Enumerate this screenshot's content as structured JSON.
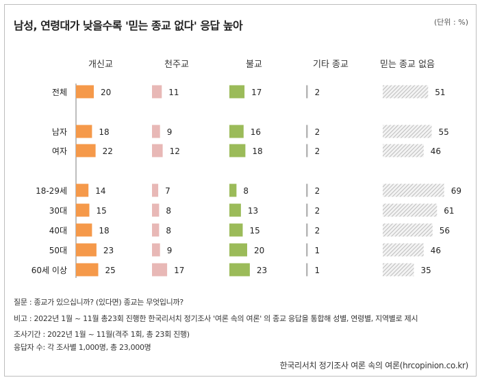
{
  "title": "남성, 연령대가 낮을수록 '믿는 종교 없다' 응답 높아",
  "unit": "(단위 : %)",
  "notes": {
    "question": "질문 : 종교가 있으십니까? (있다면) 종교는 무엇입니까?",
    "remark": "비고 : 2022년 1월 ~ 11월 총23회 진행한 한국리서치 정기조사 '여론 속의 여론' 의 종교 응답을 통합해 성별, 연령별, 지역별로 제시",
    "period": "조사기간 : 2022년 1월 ~ 11월(격주 1회, 총 23회 진행)",
    "respondents": "응답자 수: 각 조사별 1,000명, 총 23,000명"
  },
  "source": "한국리서치 정기조사 여론 속의 여론(hrcopinion.co.kr)",
  "chart_data": {
    "type": "bar",
    "categories": [
      "전체",
      "남자",
      "여자",
      "18-29세",
      "30대",
      "40대",
      "50대",
      "60세 이상"
    ],
    "series": [
      {
        "name": "개신교",
        "color": "#f5994a",
        "pattern": false,
        "values": [
          20,
          18,
          22,
          14,
          15,
          18,
          23,
          25
        ]
      },
      {
        "name": "천주교",
        "color": "#e8b8b6",
        "pattern": false,
        "values": [
          11,
          9,
          12,
          7,
          8,
          8,
          9,
          17
        ]
      },
      {
        "name": "불교",
        "color": "#9bbb59",
        "pattern": false,
        "values": [
          17,
          16,
          18,
          8,
          13,
          15,
          20,
          23
        ]
      },
      {
        "name": "기타 종교",
        "color": "#b7b7b7",
        "pattern": false,
        "values": [
          2,
          2,
          2,
          2,
          2,
          2,
          1,
          1
        ]
      },
      {
        "name": "믿는 종교 없음",
        "color": "#bfbfbf",
        "pattern": true,
        "values": [
          51,
          55,
          46,
          69,
          61,
          56,
          46,
          35
        ]
      }
    ]
  }
}
